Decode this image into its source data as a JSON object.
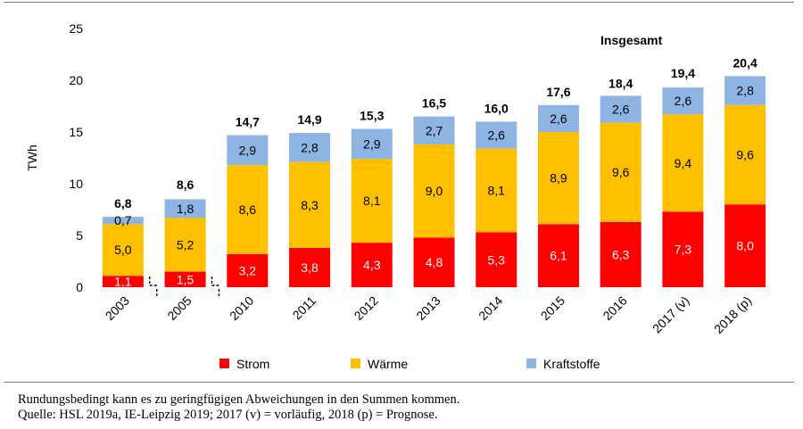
{
  "chart_data": {
    "type": "bar",
    "stacked": true,
    "title": "",
    "xlabel": "",
    "ylabel": "TWh",
    "ylim": [
      0,
      25
    ],
    "yticks": [
      0,
      5,
      10,
      15,
      20,
      25
    ],
    "grid": false,
    "legend_position": "bottom",
    "categories": [
      "2003",
      "2005",
      "2010",
      "2011",
      "2012",
      "2013",
      "2014",
      "2015",
      "2016",
      "2017 (v)",
      "2018 (p)"
    ],
    "axis_breaks_after": [
      "2003",
      "2005"
    ],
    "series": [
      {
        "name": "Strom",
        "color": "#ff0000",
        "values": [
          1.1,
          1.5,
          3.2,
          3.8,
          4.3,
          4.8,
          5.3,
          6.1,
          6.3,
          7.3,
          8.0
        ],
        "labels": [
          "1,1",
          "1,5",
          "3,2",
          "3,8",
          "4,3",
          "4,8",
          "5,3",
          "6,1",
          "6,3",
          "7,3",
          "8,0"
        ]
      },
      {
        "name": "Wärme",
        "color": "#ffc000",
        "values": [
          5.0,
          5.2,
          8.6,
          8.3,
          8.1,
          9.0,
          8.1,
          8.9,
          9.6,
          9.4,
          9.6
        ],
        "labels": [
          "5,0",
          "5,2",
          "8,6",
          "8,3",
          "8,1",
          "9,0",
          "8,1",
          "8,9",
          "9,6",
          "9,4",
          "9,6"
        ]
      },
      {
        "name": "Kraftstoffe",
        "color": "#8eb4e3",
        "values": [
          0.7,
          1.8,
          2.9,
          2.8,
          2.9,
          2.7,
          2.6,
          2.6,
          2.6,
          2.6,
          2.8
        ],
        "labels": [
          "0,7",
          "1,8",
          "2,9",
          "2,8",
          "2,9",
          "2,7",
          "2,6",
          "2,6",
          "2,6",
          "2,6",
          "2,8"
        ]
      }
    ],
    "totals_label": "Insgesamt",
    "totals": [
      6.8,
      8.6,
      14.7,
      14.9,
      15.3,
      16.5,
      16.0,
      17.6,
      18.4,
      19.4,
      20.4
    ],
    "totals_labels": [
      "6,8",
      "8,6",
      "14,7",
      "14,9",
      "15,3",
      "16,5",
      "16,0",
      "17,6",
      "18,4",
      "19,4",
      "20,4"
    ]
  },
  "notes": {
    "line1": "Rundungsbedingt kann es zu geringfügigen Abweichungen in den Summen kommen.",
    "line2": "Quelle: HSL 2019a, IE-Leipzig 2019; 2017 (v) = vorläufig, 2018 (p) = Prognose."
  }
}
